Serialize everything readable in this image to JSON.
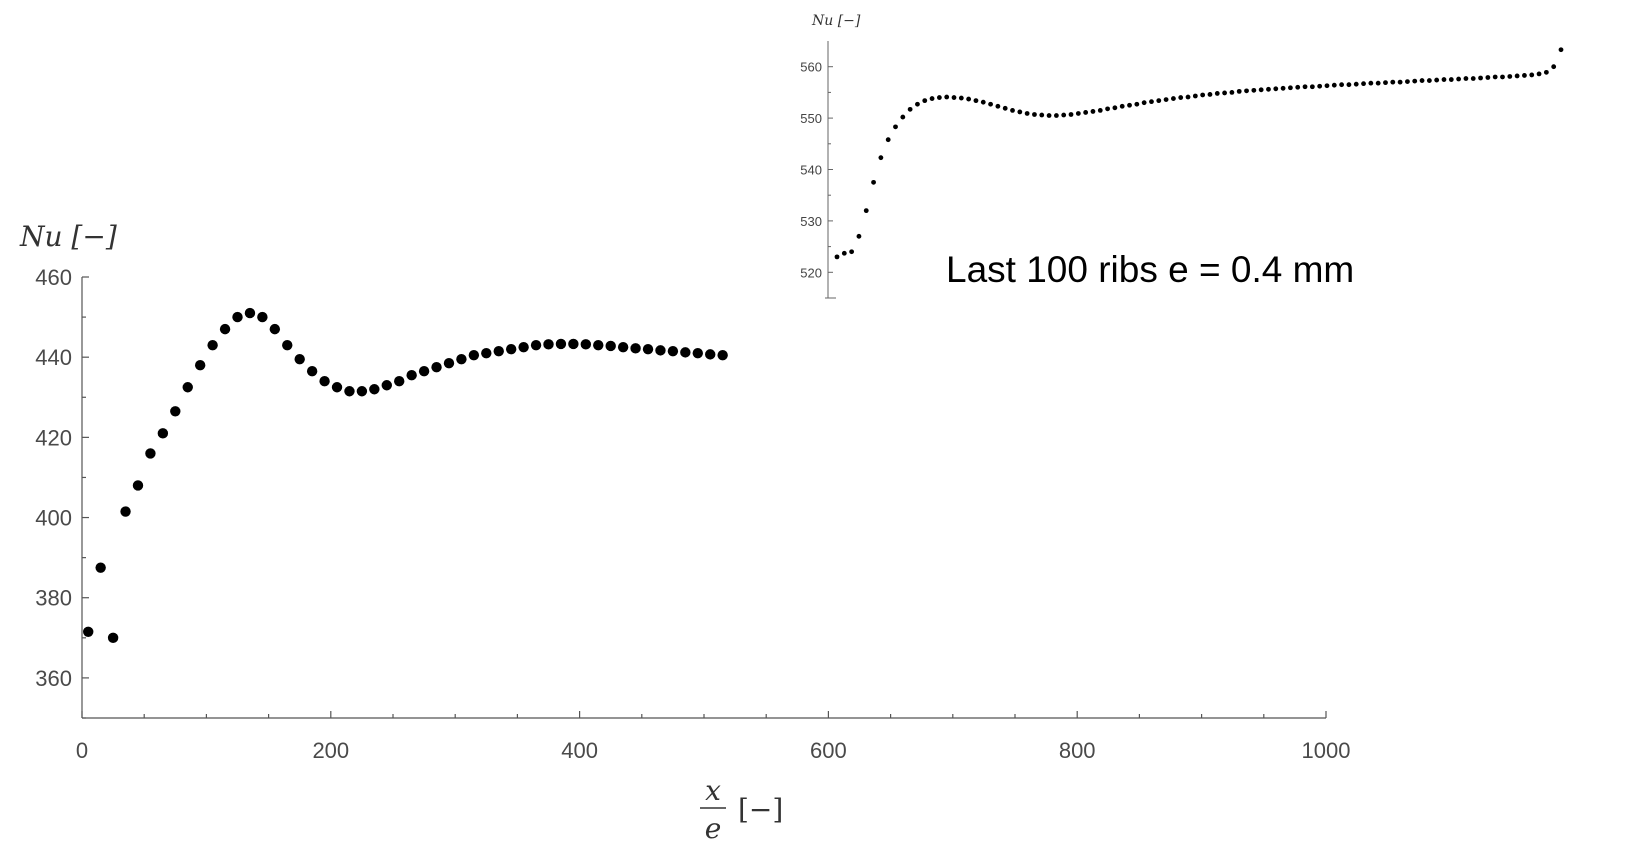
{
  "chart_data": [
    {
      "type": "scatter",
      "ylabel": "Nu [−]",
      "xlabel_num": "x",
      "xlabel_den": "e",
      "xlabel_unit": "[−]",
      "xlim": [
        0,
        1000
      ],
      "ylim": [
        350,
        460
      ],
      "x_ticks": [
        0,
        200,
        400,
        600,
        800,
        1000
      ],
      "y_ticks": [
        360,
        380,
        400,
        420,
        440,
        460
      ],
      "grid": false,
      "marker_color": "#000000",
      "x": [
        5,
        15,
        25,
        35,
        45,
        55,
        65,
        75,
        85,
        95,
        105,
        115,
        125,
        135,
        145,
        155,
        165,
        175,
        185,
        195,
        205,
        215,
        225,
        235,
        245,
        255,
        265,
        275,
        285,
        295,
        305,
        315,
        325,
        335,
        345,
        355,
        365,
        375,
        385,
        395,
        405,
        415,
        425,
        435,
        445,
        455,
        465,
        475,
        485,
        495,
        505,
        515
      ],
      "y": [
        371.5,
        387.5,
        370,
        401.5,
        408,
        416,
        421,
        426.5,
        432.5,
        438,
        443,
        447,
        450,
        451,
        450,
        447,
        443,
        439.5,
        436.5,
        434,
        432.5,
        431.5,
        431.5,
        432,
        433,
        434,
        435.5,
        436.5,
        437.5,
        438.5,
        439.5,
        440.5,
        441,
        441.5,
        442,
        442.5,
        443,
        443.2,
        443.3,
        443.3,
        443.2,
        443,
        442.8,
        442.5,
        442.2,
        442,
        441.7,
        441.5,
        441.2,
        441,
        440.7,
        440.5
      ]
    },
    {
      "type": "scatter",
      "ylabel": "Nu [−]",
      "annotation": "Last 100 ribs e = 0.4 mm",
      "ylim": [
        515,
        565
      ],
      "y_ticks": [
        520,
        530,
        540,
        550,
        560
      ],
      "grid": false,
      "marker_color": "#000000",
      "x": [
        1,
        2,
        3,
        4,
        5,
        6,
        7,
        8,
        9,
        10,
        11,
        12,
        13,
        14,
        15,
        16,
        17,
        18,
        19,
        20,
        21,
        22,
        23,
        24,
        25,
        26,
        27,
        28,
        29,
        30,
        31,
        32,
        33,
        34,
        35,
        36,
        37,
        38,
        39,
        40,
        41,
        42,
        43,
        44,
        45,
        46,
        47,
        48,
        49,
        50,
        51,
        52,
        53,
        54,
        55,
        56,
        57,
        58,
        59,
        60,
        61,
        62,
        63,
        64,
        65,
        66,
        67,
        68,
        69,
        70,
        71,
        72,
        73,
        74,
        75,
        76,
        77,
        78,
        79,
        80,
        81,
        82,
        83,
        84,
        85,
        86,
        87,
        88,
        89,
        90,
        91,
        92,
        93,
        94,
        95,
        96,
        97,
        98,
        99,
        100
      ],
      "y": [
        523,
        523.7,
        524,
        527,
        532,
        537.5,
        542.3,
        545.8,
        548.3,
        550.2,
        551.7,
        552.7,
        553.4,
        553.8,
        554,
        554.1,
        554,
        553.9,
        553.7,
        553.4,
        553.1,
        552.7,
        552.3,
        551.9,
        551.5,
        551.2,
        550.9,
        550.7,
        550.6,
        550.5,
        550.5,
        550.6,
        550.7,
        550.9,
        551.1,
        551.3,
        551.5,
        551.8,
        552,
        552.3,
        552.5,
        552.7,
        553,
        553.2,
        553.4,
        553.6,
        553.8,
        554,
        554.1,
        554.3,
        554.5,
        554.6,
        554.8,
        554.9,
        555,
        555.2,
        555.3,
        555.4,
        555.5,
        555.6,
        555.7,
        555.8,
        555.9,
        556,
        556.1,
        556.1,
        556.2,
        556.3,
        556.4,
        556.5,
        556.5,
        556.6,
        556.7,
        556.8,
        556.8,
        556.9,
        557,
        557,
        557.1,
        557.2,
        557.3,
        557.3,
        557.4,
        557.5,
        557.5,
        557.6,
        557.7,
        557.7,
        557.8,
        557.9,
        558,
        558,
        558.1,
        558.2,
        558.3,
        558.4,
        558.6,
        558.9,
        560,
        563.3
      ]
    }
  ]
}
